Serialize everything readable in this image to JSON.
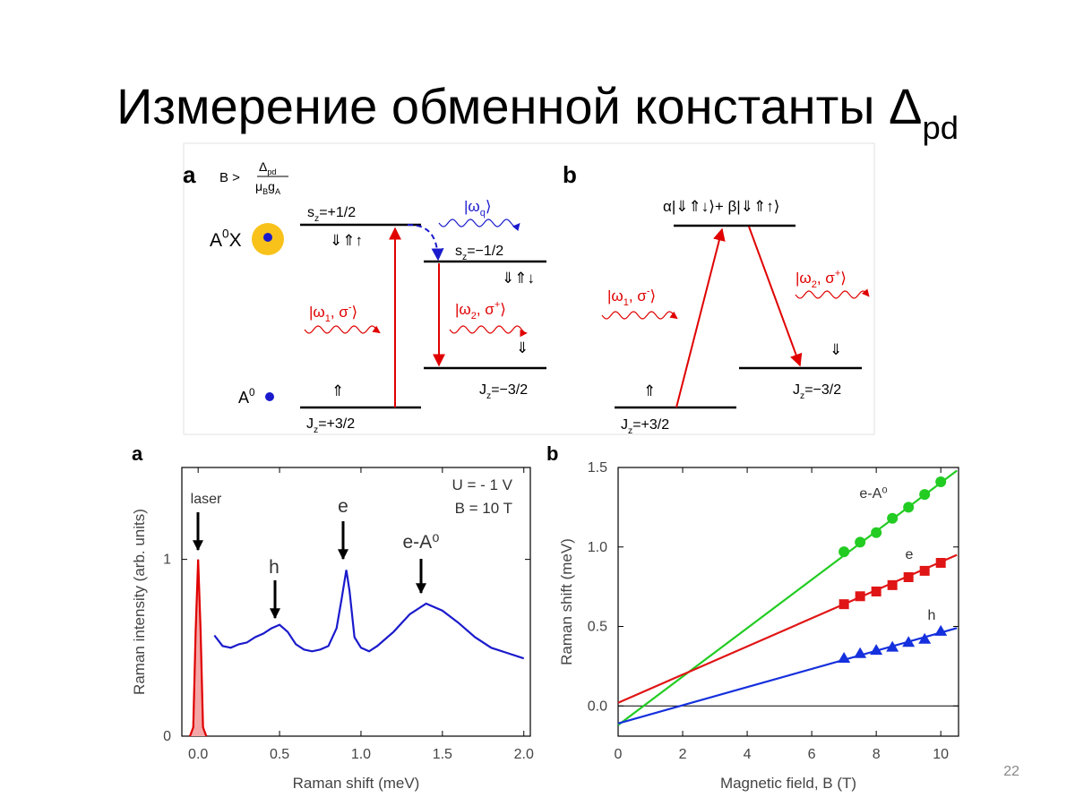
{
  "title": [
    {
      "t": "Измерение обменной константы Δ"
    },
    {
      "sub": "pd"
    }
  ],
  "slide_number": "22",
  "diagram": {
    "a": {
      "label": "a",
      "condition": [
        {
          "t": "B >"
        }
      ],
      "numerator": [
        {
          "t": "Δ"
        },
        {
          "sub": "pd"
        }
      ],
      "denominator": [
        {
          "t": "μ"
        },
        {
          "sub": "B"
        },
        {
          "t": "g"
        },
        {
          "sub": "A"
        }
      ],
      "exciton": [
        {
          "t": "A"
        },
        {
          "sup": "0"
        },
        {
          "t": "X"
        }
      ],
      "upper_level": [
        {
          "t": "s"
        },
        {
          "sub": "z"
        },
        {
          "t": "=+1/2"
        }
      ],
      "upper_spins": [
        {
          "t": "⇓⇑↑"
        }
      ],
      "omega_q": [
        {
          "t": "|ω"
        },
        {
          "sub": "q"
        },
        {
          "t": "⟩"
        }
      ],
      "middle_level": [
        {
          "t": "s"
        },
        {
          "sub": "z"
        },
        {
          "t": "=−1/2"
        }
      ],
      "middle_spins": [
        {
          "t": "⇓⇑↓"
        }
      ],
      "omega_1": [
        {
          "t": "|ω"
        },
        {
          "sub": "1"
        },
        {
          "t": ", σ"
        },
        {
          "sup": "-"
        },
        {
          "t": "⟩"
        }
      ],
      "omega_2": [
        {
          "t": "|ω"
        },
        {
          "sub": "2"
        },
        {
          "t": ", σ"
        },
        {
          "sup": "+"
        },
        {
          "t": "⟩"
        }
      ],
      "lower_right_spin": [
        {
          "t": "⇓"
        }
      ],
      "lower_left_spin": [
        {
          "t": "⇑"
        }
      ],
      "acceptor": [
        {
          "t": "A"
        },
        {
          "sup": "0"
        }
      ],
      "ground_left": [
        {
          "t": "J"
        },
        {
          "sub": "z"
        },
        {
          "t": "=+3/2"
        }
      ],
      "ground_right": [
        {
          "t": "J"
        },
        {
          "sub": "z"
        },
        {
          "t": "=−3/2"
        }
      ]
    },
    "b": {
      "label": "b",
      "superposition": [
        {
          "t": "α|⇓⇑↓⟩+ β|⇓⇑↑⟩"
        }
      ],
      "omega_1": [
        {
          "t": "|ω"
        },
        {
          "sub": "1"
        },
        {
          "t": ", σ"
        },
        {
          "sup": "-"
        },
        {
          "t": "⟩"
        }
      ],
      "omega_2": [
        {
          "t": "|ω"
        },
        {
          "sub": "2"
        },
        {
          "t": ", σ"
        },
        {
          "sup": "+"
        },
        {
          "t": "⟩"
        }
      ],
      "lower_right_spin": [
        {
          "t": "⇓"
        }
      ],
      "lower_left_spin": [
        {
          "t": "⇑"
        }
      ],
      "ground_left": [
        {
          "t": "J"
        },
        {
          "sub": "z"
        },
        {
          "t": "=+3/2"
        }
      ],
      "ground_right": [
        {
          "t": "J"
        },
        {
          "sub": "z"
        },
        {
          "t": "=−3/2"
        }
      ]
    }
  },
  "chart_data": [
    {
      "type": "line",
      "panel_label": "a",
      "x_label": "Raman shift (meV)",
      "y_label": "Raman intensity (arb. units)",
      "xlim": [
        -0.1,
        2.04
      ],
      "ylim": [
        0,
        1.52
      ],
      "xticks": [
        {
          "value": 0,
          "label": "0.0"
        },
        0.5,
        {
          "value": 1,
          "label": "1.0"
        },
        1.5,
        {
          "value": 2,
          "label": "2.0"
        }
      ],
      "yticks": [
        0,
        1
      ],
      "series": [
        {
          "color": "#e00000",
          "fill": "#f4a6a6",
          "x": [
            -0.05,
            -0.03,
            -0.015,
            0,
            0.015,
            0.03,
            0.05
          ],
          "values": [
            0,
            0.05,
            0.6,
            1.0,
            0.6,
            0.05,
            0
          ]
        },
        {
          "color": "#1a1acc",
          "x": [
            0.1,
            0.15,
            0.2,
            0.25,
            0.3,
            0.35,
            0.4,
            0.45,
            0.5,
            0.55,
            0.6,
            0.65,
            0.7,
            0.75,
            0.8,
            0.85,
            0.88,
            0.91,
            0.93,
            0.96,
            1.0,
            1.05,
            1.1,
            1.2,
            1.3,
            1.4,
            1.5,
            1.6,
            1.7,
            1.8,
            1.9,
            2.0
          ],
          "values": [
            0.57,
            0.51,
            0.5,
            0.52,
            0.53,
            0.56,
            0.58,
            0.61,
            0.63,
            0.59,
            0.52,
            0.49,
            0.48,
            0.49,
            0.51,
            0.61,
            0.77,
            0.94,
            0.82,
            0.56,
            0.5,
            0.48,
            0.51,
            0.59,
            0.69,
            0.75,
            0.71,
            0.64,
            0.56,
            0.5,
            0.47,
            0.44
          ]
        }
      ],
      "annotations": [
        "laser",
        "h",
        "e",
        "e-A⁰"
      ],
      "conditions": [
        "U = - 1 V",
        "B = 10 T"
      ]
    },
    {
      "type": "scatter",
      "panel_label": "b",
      "x_label": "Magnetic field, B (T)",
      "y_label": "Raman shift (meV)",
      "xlim": [
        0,
        10.55
      ],
      "ylim": [
        -0.19,
        1.5
      ],
      "xticks": [
        0,
        2,
        4,
        6,
        8,
        10
      ],
      "yticks": [
        {
          "value": 0,
          "label": "0.0"
        },
        0.5,
        {
          "value": 1,
          "label": "1.0"
        },
        1.5
      ],
      "zero_line": true,
      "series": [
        {
          "name": "e-A⁰",
          "color": "#22cc22",
          "marker": "circle",
          "x": [
            7,
            7.5,
            8,
            8.5,
            9,
            9.5,
            10
          ],
          "values": [
            0.97,
            1.03,
            1.09,
            1.18,
            1.25,
            1.33,
            1.41
          ],
          "fit": {
            "x": [
              0,
              10.5
            ],
            "values": [
              -0.12,
              1.48
            ]
          }
        },
        {
          "name": "e",
          "color": "#e01515",
          "marker": "square",
          "x": [
            7,
            7.5,
            8,
            8.5,
            9,
            9.5,
            10
          ],
          "values": [
            0.64,
            0.69,
            0.72,
            0.76,
            0.81,
            0.85,
            0.9
          ],
          "fit": {
            "x": [
              0,
              10.5
            ],
            "values": [
              0.02,
              0.95
            ]
          }
        },
        {
          "name": "h",
          "color": "#1530dd",
          "marker": "triangle",
          "x": [
            7,
            7.5,
            8,
            8.5,
            9,
            9.5,
            10
          ],
          "values": [
            0.3,
            0.33,
            0.35,
            0.37,
            0.4,
            0.42,
            0.47
          ],
          "fit": {
            "x": [
              0,
              10.5
            ],
            "values": [
              -0.11,
              0.49
            ]
          }
        }
      ]
    }
  ]
}
